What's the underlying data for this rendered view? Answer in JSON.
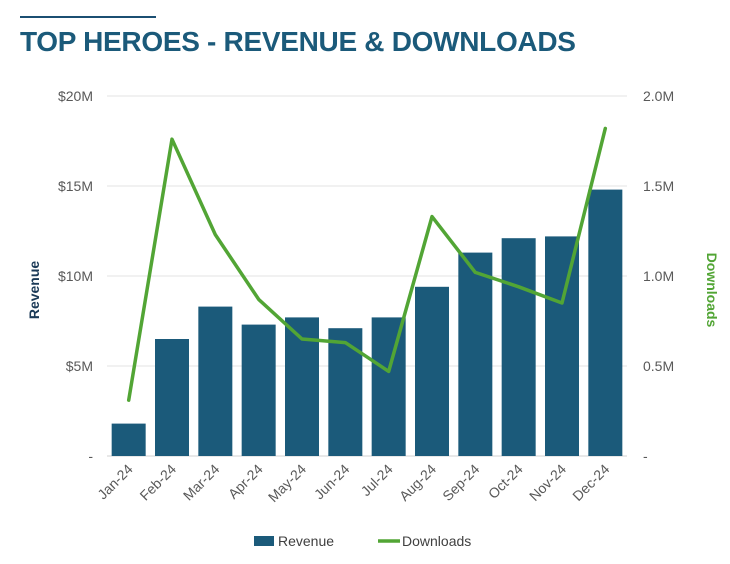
{
  "chart_data": {
    "type": "bar",
    "title": "TOP HEROES - REVENUE & DOWNLOADS",
    "categories": [
      "Jan-24",
      "Feb-24",
      "Mar-24",
      "Apr-24",
      "May-24",
      "Jun-24",
      "Jul-24",
      "Aug-24",
      "Sep-24",
      "Oct-24",
      "Nov-24",
      "Dec-24"
    ],
    "series": [
      {
        "name": "Revenue",
        "type": "bar",
        "axis": "left",
        "color": "#1b5a7a",
        "values": [
          1.8,
          6.5,
          8.3,
          7.3,
          7.7,
          7.1,
          7.7,
          9.4,
          11.3,
          12.1,
          12.2,
          14.8
        ]
      },
      {
        "name": "Downloads",
        "type": "line",
        "axis": "right",
        "color": "#52a535",
        "values": [
          0.31,
          1.76,
          1.23,
          0.87,
          0.65,
          0.63,
          0.47,
          1.33,
          1.02,
          0.94,
          0.85,
          1.82
        ]
      }
    ],
    "ylabel": "Revenue",
    "y2label": "Downloads",
    "ylim": [
      0,
      20
    ],
    "y2lim": [
      0,
      2.0
    ],
    "yticks": [
      "-",
      "$5M",
      "$10M",
      "$15M",
      "$20M"
    ],
    "y2ticks": [
      "-",
      "0.5M",
      "1.0M",
      "1.5M",
      "2.0M"
    ],
    "grid": true,
    "legend_position": "bottom"
  }
}
